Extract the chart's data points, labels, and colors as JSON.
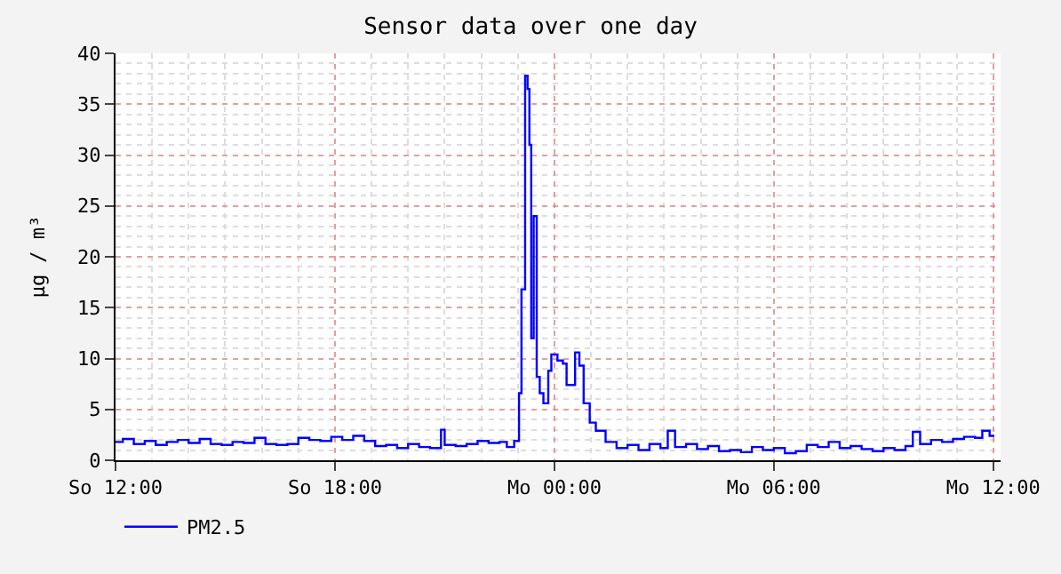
{
  "chart_data": {
    "type": "step",
    "title": "Sensor data over one day",
    "ylabel": "µg / m³",
    "x": [
      "--01-07T12:00",
      "--01-07T12:12",
      "--01-07T12:30",
      "--01-07T12:48",
      "--01-07T13:06",
      "--01-07T13:24",
      "--01-07T13:42",
      "--01-07T14:00",
      "--01-07T14:18",
      "--01-07T14:36",
      "--01-07T14:54",
      "--01-07T15:12",
      "--01-07T15:30",
      "--01-07T15:48",
      "--01-07T16:06",
      "--01-07T16:24",
      "--01-07T16:42",
      "--01-07T17:00",
      "--01-07T17:18",
      "--01-07T17:36",
      "--01-07T17:54",
      "--01-07T18:12",
      "--01-07T18:30",
      "--01-07T18:48",
      "--01-07T19:06",
      "--01-07T19:24",
      "--01-07T19:42",
      "--01-07T20:00",
      "--01-07T20:18",
      "--01-07T20:36",
      "--01-07T20:54",
      "--01-07T21:00",
      "--01-07T21:18",
      "--01-07T21:36",
      "--01-07T21:54",
      "--01-07T22:12",
      "--01-07T22:30",
      "--01-07T22:42",
      "--01-07T22:54",
      "--01-07T23:02",
      "--01-07T23:06",
      "--01-07T23:12",
      "--01-07T23:16",
      "--01-07T23:19",
      "--01-07T23:22",
      "--01-07T23:26",
      "--01-07T23:31",
      "--01-07T23:36",
      "--01-07T23:42",
      "--01-07T23:50",
      "--01-07T23:55",
      "--01-08T00:05",
      "--01-08T00:14",
      "--01-08T00:20",
      "--01-08T00:34",
      "--01-08T00:41",
      "--01-08T00:48",
      "--01-08T00:58",
      "--01-08T01:08",
      "--01-08T01:24",
      "--01-08T01:42",
      "--01-08T02:00",
      "--01-08T02:18",
      "--01-08T02:36",
      "--01-08T02:54",
      "--01-08T03:06",
      "--01-08T03:18",
      "--01-08T03:36",
      "--01-08T03:54",
      "--01-08T04:12",
      "--01-08T04:30",
      "--01-08T04:48",
      "--01-08T05:06",
      "--01-08T05:24",
      "--01-08T05:42",
      "--01-08T06:00",
      "--01-08T06:18",
      "--01-08T06:36",
      "--01-08T06:54",
      "--01-08T07:12",
      "--01-08T07:30",
      "--01-08T07:48",
      "--01-08T08:06",
      "--01-08T08:24",
      "--01-08T08:42",
      "--01-08T09:00",
      "--01-08T09:18",
      "--01-08T09:36",
      "--01-08T09:48",
      "--01-08T10:00",
      "--01-08T10:18",
      "--01-08T10:36",
      "--01-08T10:54",
      "--01-08T11:12",
      "--01-08T11:30",
      "--01-08T11:42",
      "--01-08T11:54",
      "--01-08T12:00"
    ],
    "series": [
      {
        "name": "PM2.5",
        "color": "#0000ff",
        "values": [
          1.8,
          2.1,
          1.6,
          1.9,
          1.5,
          1.8,
          2.0,
          1.7,
          2.1,
          1.6,
          1.5,
          1.8,
          1.7,
          2.2,
          1.6,
          1.5,
          1.6,
          2.2,
          2.0,
          1.9,
          2.3,
          2.0,
          2.4,
          1.9,
          1.4,
          1.5,
          1.2,
          1.6,
          1.3,
          1.2,
          3.0,
          1.5,
          1.4,
          1.6,
          1.9,
          1.7,
          1.8,
          1.3,
          1.9,
          6.6,
          16.8,
          37.8,
          36.5,
          31,
          12,
          24,
          8.2,
          6.6,
          5.6,
          8.8,
          10.4,
          9.8,
          9.5,
          7.4,
          10.6,
          9.3,
          5.6,
          3.7,
          2.9,
          1.8,
          1.2,
          1.5,
          1.0,
          1.6,
          1.2,
          2.9,
          1.3,
          1.6,
          1.1,
          1.4,
          0.9,
          1.0,
          0.8,
          1.3,
          1.0,
          1.2,
          0.7,
          0.9,
          1.5,
          1.3,
          1.8,
          1.2,
          1.4,
          1.1,
          0.9,
          1.2,
          1.0,
          1.4,
          2.8,
          1.6,
          2.0,
          1.8,
          2.1,
          2.3,
          2.2,
          2.9,
          2.4,
          2.3
        ]
      }
    ],
    "xlim": [
      "--01-07T12:00",
      "--01-08T12:12"
    ],
    "xticks": [
      {
        "value": "--01-07T12:00",
        "label": "So 12:00"
      },
      {
        "value": "--01-07T18:00",
        "label": "So 18:00"
      },
      {
        "value": "--01-08T00:00",
        "label": "Mo 00:00"
      },
      {
        "value": "--01-08T06:00",
        "label": "Mo 06:00"
      },
      {
        "value": "--01-08T12:00",
        "label": "Mo 12:00"
      }
    ],
    "ylim": [
      0,
      40
    ],
    "yticks": [
      0,
      5,
      10,
      15,
      20,
      25,
      30,
      35,
      40
    ],
    "grid": true,
    "legend": "bottom left",
    "line_style": "solid",
    "marker": "none"
  }
}
